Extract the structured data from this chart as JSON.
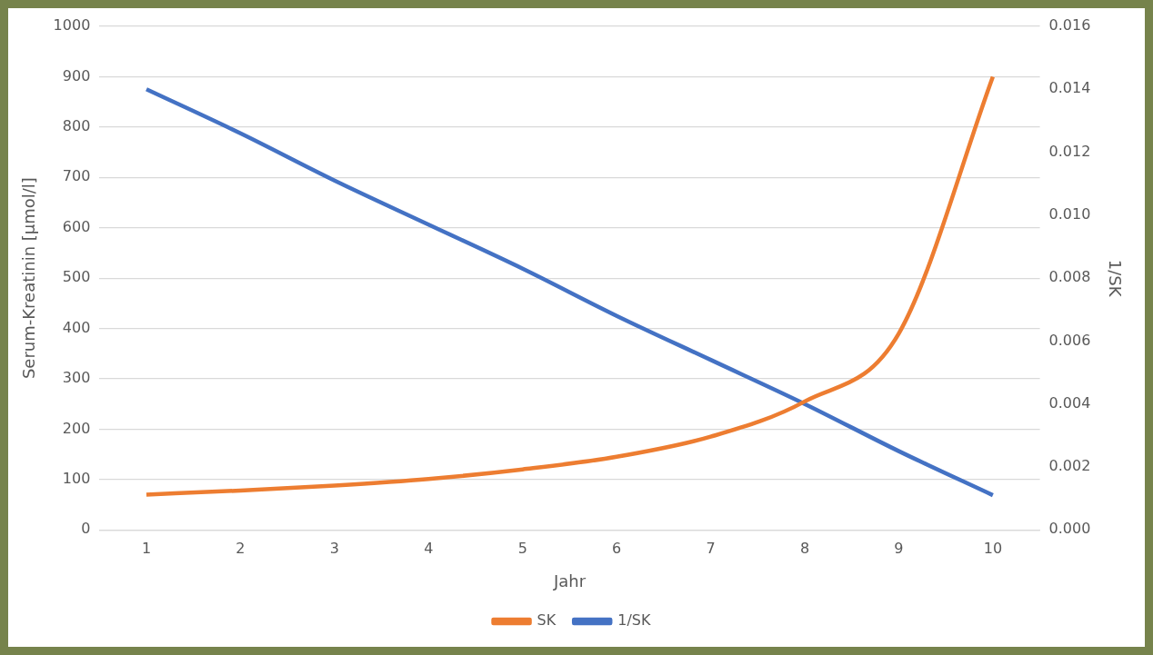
{
  "chart_data": {
    "type": "line",
    "xlabel": "Jahr",
    "ylabel": "Serum-Kreatinin [µmol/l]",
    "y2label": "1/SK",
    "categories": [
      "1",
      "2",
      "3",
      "4",
      "5",
      "6",
      "7",
      "8",
      "9",
      "10"
    ],
    "series": [
      {
        "name": "SK",
        "color": "#ed7d31",
        "values": [
          70,
          78,
          88,
          101,
          120,
          145,
          185,
          255,
          390,
          900
        ]
      },
      {
        "name": "1/SK",
        "color": "#4472c4",
        "axis": "y2",
        "values": [
          0.014,
          0.0126,
          0.0111,
          0.0097,
          0.0083,
          0.0068,
          0.0054,
          0.004,
          0.0025,
          0.0011
        ]
      }
    ],
    "ylim": [
      0,
      1000
    ],
    "yticks": [
      0,
      100,
      200,
      300,
      400,
      500,
      600,
      700,
      800,
      900,
      1000
    ],
    "y2lim": [
      0,
      0.016
    ],
    "y2ticks": [
      {
        "value": 0,
        "label": "0.000"
      },
      {
        "value": 0.002,
        "label": "0.002"
      },
      {
        "value": 0.004,
        "label": "0.004"
      },
      {
        "value": 0.006,
        "label": "0.006"
      },
      {
        "value": 0.008,
        "label": "0.008"
      },
      {
        "value": 0.01,
        "label": "0.010"
      },
      {
        "value": 0.012,
        "label": "0.012"
      },
      {
        "value": 0.014,
        "label": "0.014"
      },
      {
        "value": 0.016,
        "label": "0.016"
      }
    ],
    "grid": "y",
    "legend": "bottom"
  }
}
